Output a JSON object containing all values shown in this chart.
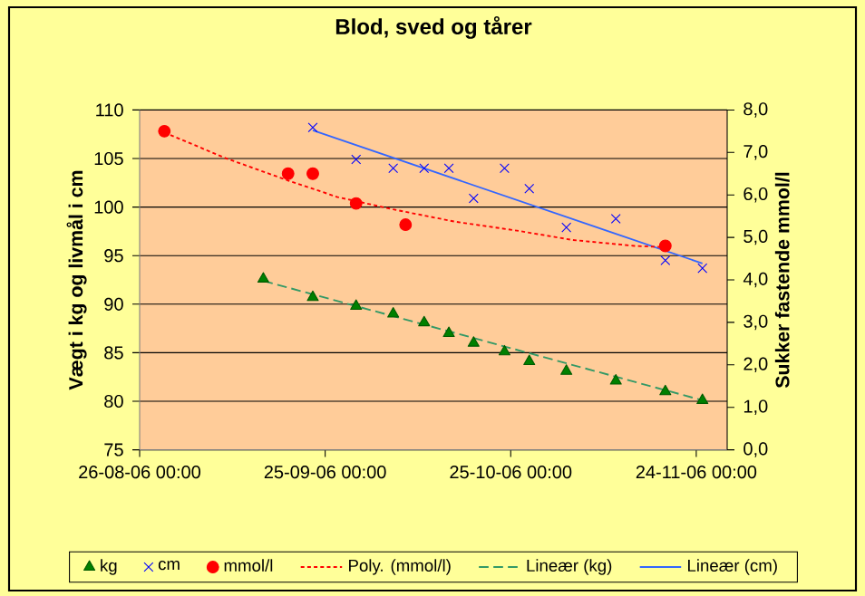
{
  "chart_data": {
    "type": "scatter",
    "title": "Blod, sved og tårer",
    "ylabel": "Vægt i kg og livmål i cm",
    "y2label": "Sukker fastende mmol/l",
    "xlim": [
      "2006-08-26",
      "2006-11-29"
    ],
    "xticks": [
      {
        "value": "2006-08-26",
        "label": "26-08-06 00:00"
      },
      {
        "value": "2006-09-25",
        "label": "25-09-06 00:00"
      },
      {
        "value": "2006-10-25",
        "label": "25-10-06 00:00"
      },
      {
        "value": "2006-11-24",
        "label": "24-11-06 00:00"
      }
    ],
    "ylim": [
      75,
      110
    ],
    "yticks": [
      75,
      80,
      85,
      90,
      95,
      100,
      105,
      110
    ],
    "y2lim": [
      0,
      8
    ],
    "y2ticks": [
      {
        "value": 0,
        "label": "0,0"
      },
      {
        "value": 1,
        "label": "1,0"
      },
      {
        "value": 2,
        "label": "2,0"
      },
      {
        "value": 3,
        "label": "3,0"
      },
      {
        "value": 4,
        "label": "4,0"
      },
      {
        "value": 5,
        "label": "5,0"
      },
      {
        "value": 6,
        "label": "6,0"
      },
      {
        "value": 7,
        "label": "7,0"
      },
      {
        "value": 8,
        "label": "8,0"
      }
    ],
    "grid": "y",
    "legend": "bottom",
    "series": [
      {
        "name": "kg",
        "type": "scatter",
        "marker": "triangle",
        "color": "#008000",
        "x": [
          "2006-09-15",
          "2006-09-23",
          "2006-09-30",
          "2006-10-06",
          "2006-10-11",
          "2006-10-15",
          "2006-10-19",
          "2006-10-24",
          "2006-10-28",
          "2006-11-03",
          "2006-11-11",
          "2006-11-19",
          "2006-11-25"
        ],
        "values": [
          92.6,
          90.7,
          89.8,
          89.0,
          88.1,
          87.0,
          86.0,
          85.1,
          84.1,
          83.1,
          82.1,
          81.0,
          80.1
        ]
      },
      {
        "name": "cm",
        "type": "scatter",
        "marker": "cross",
        "color": "#0000ff",
        "x": [
          "2006-09-23",
          "2006-09-30",
          "2006-10-06",
          "2006-10-11",
          "2006-10-15",
          "2006-10-19",
          "2006-10-24",
          "2006-10-28",
          "2006-11-03",
          "2006-11-11",
          "2006-11-19",
          "2006-11-25"
        ],
        "values": [
          108.2,
          104.9,
          104.0,
          104.0,
          104.0,
          100.9,
          104.0,
          101.9,
          97.9,
          98.8,
          94.5,
          93.7
        ]
      },
      {
        "name": "mmol/l",
        "type": "scatter",
        "marker": "circle",
        "color": "#ff0000",
        "axis": "y2",
        "x": [
          "2006-08-30",
          "2006-09-19",
          "2006-09-23",
          "2006-09-30",
          "2006-10-08",
          "2006-11-19"
        ],
        "values": [
          7.5,
          6.5,
          6.5,
          5.8,
          5.3,
          4.8
        ]
      },
      {
        "name": "Poly. (mmol/l)",
        "type": "line",
        "line_style": "dotted",
        "color": "#ff0000",
        "axis": "y2",
        "x": [
          "2006-08-30",
          "2006-09-09",
          "2006-09-19",
          "2006-09-27",
          "2006-10-06",
          "2006-10-16",
          "2006-10-26",
          "2006-11-04",
          "2006-11-14",
          "2006-11-19"
        ],
        "values": [
          7.47,
          6.86,
          6.34,
          5.95,
          5.66,
          5.37,
          5.16,
          4.94,
          4.8,
          4.77
        ]
      },
      {
        "name": "Lineær (kg)",
        "type": "line",
        "line_style": "dashed",
        "color": "#339966",
        "x": [
          "2006-09-15",
          "2006-11-25"
        ],
        "values": [
          92.4,
          80.1
        ]
      },
      {
        "name": "Lineær (cm)",
        "type": "line",
        "line_style": "solid",
        "color": "#3366ff",
        "x": [
          "2006-09-23",
          "2006-11-25"
        ],
        "values": [
          107.9,
          94.2
        ]
      }
    ]
  }
}
